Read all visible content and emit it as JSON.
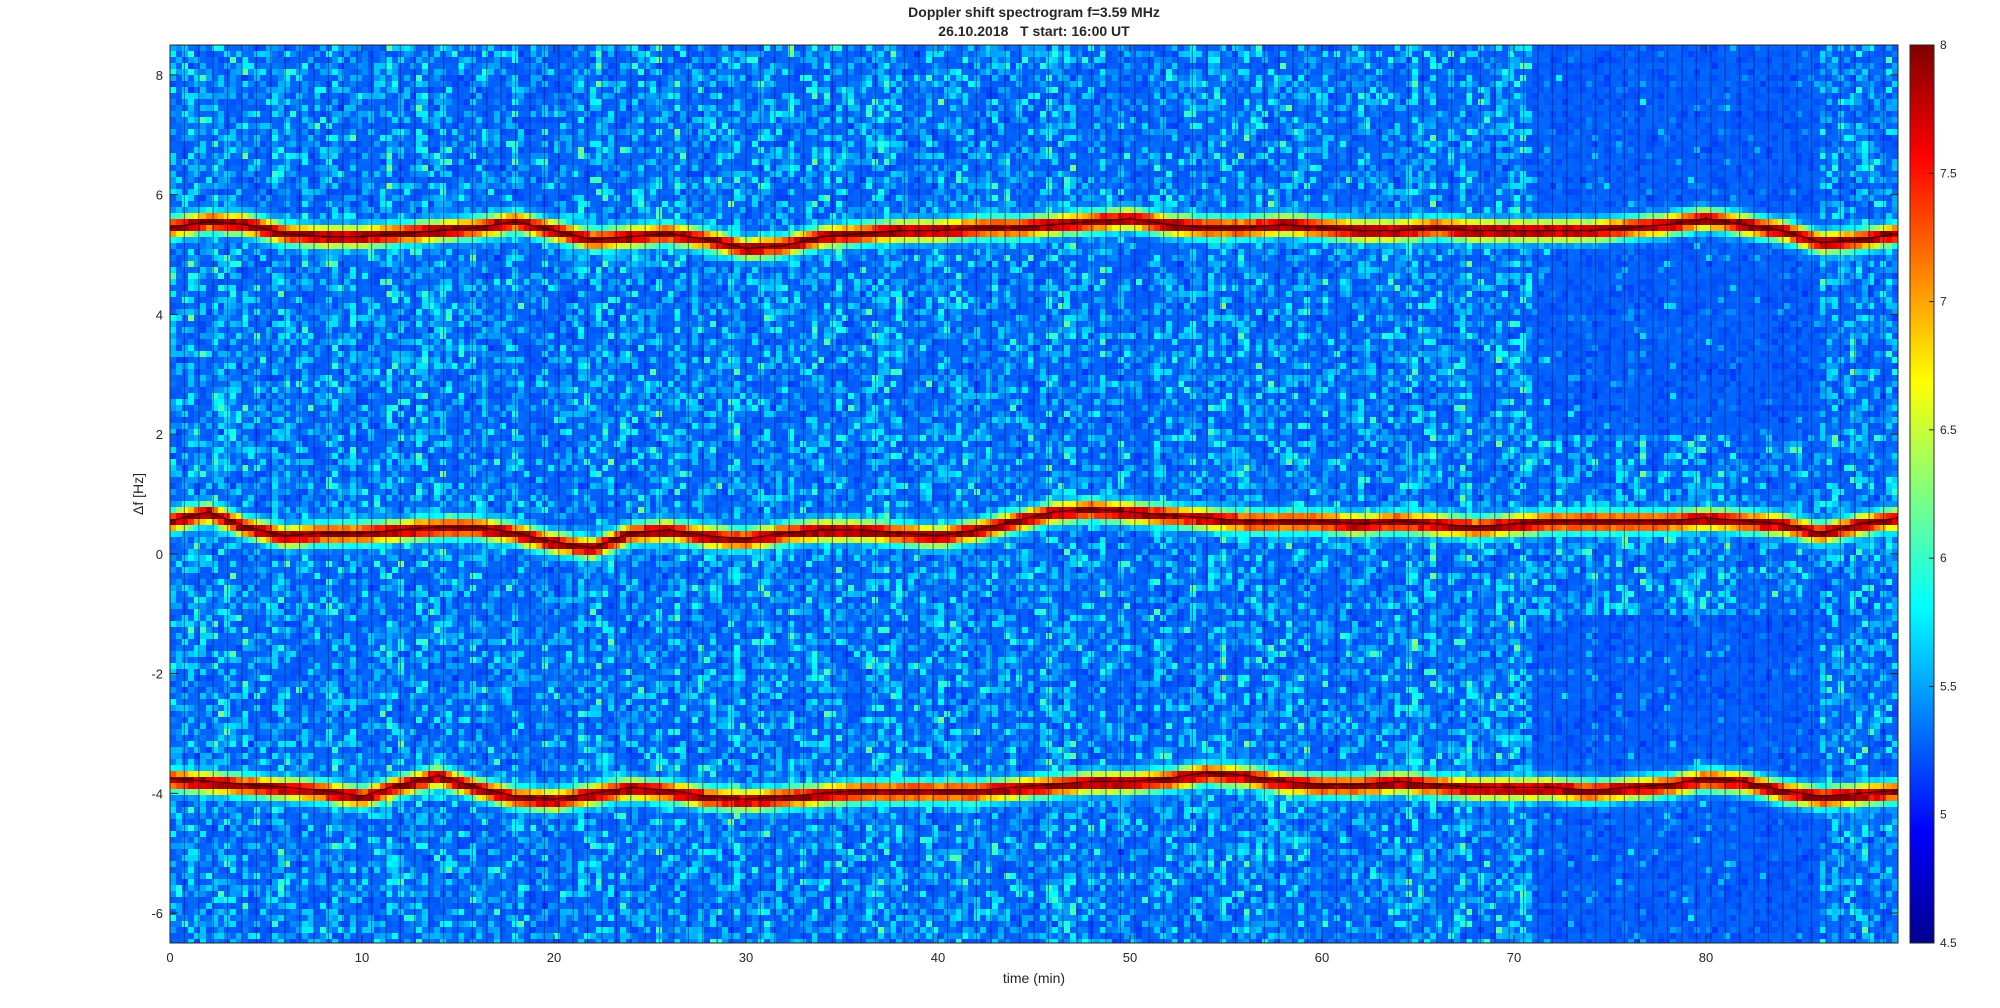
{
  "chart_data": {
    "type": "heatmap",
    "title": "Doppler shift spectrogram f=3.59 MHz",
    "subtitle": "26.10.2018   T start: 16:00 UT",
    "xlabel": "time (min)",
    "ylabel": "Δf [Hz]",
    "xlim": [
      0,
      90
    ],
    "ylim": [
      -6.5,
      8.5
    ],
    "x_ticks": [
      0,
      10,
      20,
      30,
      40,
      50,
      60,
      70,
      80
    ],
    "y_ticks": [
      8,
      6,
      4,
      2,
      0,
      -2,
      -4,
      -6
    ],
    "x_tick_labels": [
      "0",
      "10",
      "20",
      "30",
      "40",
      "50",
      "60",
      "70",
      "80"
    ],
    "y_tick_labels": [
      "8",
      "6",
      "4",
      "2",
      "0",
      "-2",
      "-4",
      "-6"
    ],
    "colorbar": {
      "colormap": "jet",
      "clim": [
        4.5,
        8
      ],
      "ticks": [
        8,
        7.5,
        7,
        6.5,
        6,
        5.5,
        5,
        4.5
      ],
      "tick_labels": [
        "8",
        "7.5",
        "7",
        "6.5",
        "6",
        "5.5",
        "5",
        "4.5"
      ]
    },
    "background_level": 5.2,
    "darker_regions": [
      {
        "x": [
          71,
          86
        ],
        "y": [
          2,
          8.5
        ]
      },
      {
        "x": [
          71,
          86
        ],
        "y": [
          -6.5,
          -1
        ]
      }
    ],
    "series": [
      {
        "x": [
          0,
          2,
          4,
          6,
          8,
          10,
          12,
          14,
          16,
          18,
          20,
          22,
          24,
          26,
          28,
          30,
          32,
          34,
          36,
          38,
          40,
          42,
          44,
          46,
          48,
          50,
          52,
          54,
          56,
          58,
          60,
          62,
          64,
          66,
          68,
          70,
          72,
          74,
          76,
          78,
          80,
          82,
          84,
          86,
          88,
          90
        ],
        "values": [
          5.45,
          5.55,
          5.5,
          5.35,
          5.3,
          5.3,
          5.35,
          5.4,
          5.45,
          5.55,
          5.4,
          5.25,
          5.3,
          5.35,
          5.25,
          5.1,
          5.15,
          5.3,
          5.35,
          5.4,
          5.4,
          5.45,
          5.45,
          5.5,
          5.55,
          5.6,
          5.5,
          5.45,
          5.45,
          5.5,
          5.45,
          5.4,
          5.4,
          5.45,
          5.4,
          5.4,
          5.4,
          5.4,
          5.45,
          5.5,
          5.6,
          5.5,
          5.4,
          5.2,
          5.25,
          5.35
        ]
      },
      {
        "x": [
          0,
          2,
          4,
          6,
          8,
          10,
          12,
          14,
          16,
          18,
          20,
          22,
          24,
          26,
          28,
          30,
          32,
          34,
          36,
          38,
          40,
          42,
          44,
          46,
          48,
          50,
          52,
          54,
          56,
          58,
          60,
          62,
          64,
          66,
          68,
          70,
          72,
          74,
          76,
          78,
          80,
          82,
          84,
          86,
          88,
          90
        ],
        "values": [
          0.55,
          0.7,
          0.45,
          0.3,
          0.35,
          0.35,
          0.4,
          0.45,
          0.45,
          0.35,
          0.2,
          0.1,
          0.35,
          0.4,
          0.3,
          0.25,
          0.35,
          0.4,
          0.4,
          0.35,
          0.3,
          0.4,
          0.55,
          0.7,
          0.75,
          0.7,
          0.65,
          0.6,
          0.55,
          0.55,
          0.55,
          0.5,
          0.55,
          0.5,
          0.45,
          0.5,
          0.55,
          0.55,
          0.55,
          0.55,
          0.6,
          0.55,
          0.5,
          0.35,
          0.5,
          0.6
        ]
      },
      {
        "x": [
          0,
          2,
          4,
          6,
          8,
          10,
          12,
          14,
          16,
          18,
          20,
          22,
          24,
          26,
          28,
          30,
          32,
          34,
          36,
          38,
          40,
          42,
          44,
          46,
          48,
          50,
          52,
          54,
          56,
          58,
          60,
          62,
          64,
          66,
          68,
          70,
          72,
          74,
          76,
          78,
          80,
          82,
          84,
          86,
          88,
          90
        ],
        "values": [
          -3.75,
          -3.8,
          -3.85,
          -3.9,
          -3.95,
          -4.05,
          -3.85,
          -3.7,
          -3.9,
          -4.05,
          -4.1,
          -4.0,
          -3.9,
          -3.95,
          -4.05,
          -4.1,
          -4.05,
          -4.0,
          -3.95,
          -3.95,
          -3.95,
          -3.95,
          -3.9,
          -3.85,
          -3.8,
          -3.8,
          -3.75,
          -3.65,
          -3.7,
          -3.8,
          -3.85,
          -3.85,
          -3.8,
          -3.85,
          -3.9,
          -3.9,
          -3.9,
          -3.95,
          -3.9,
          -3.85,
          -3.75,
          -3.8,
          -3.95,
          -4.05,
          -4.0,
          -3.95
        ]
      }
    ]
  }
}
